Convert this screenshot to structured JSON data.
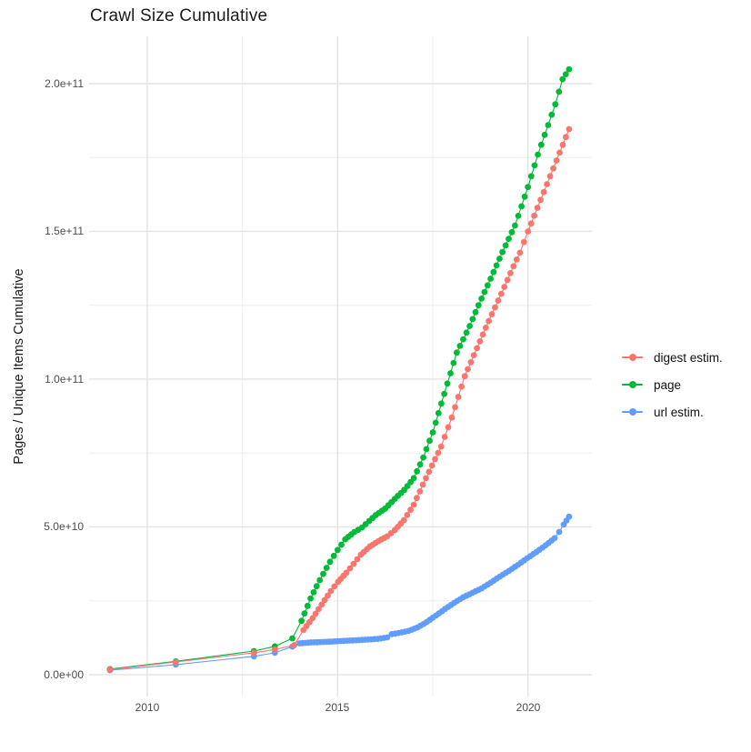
{
  "chart_data": {
    "type": "scatter",
    "title": "Crawl Size Cumulative",
    "xlabel": "",
    "ylabel": "Pages / Unique Items Cumulative",
    "x_tick_labels": [
      "2010",
      "2015",
      "2020"
    ],
    "x_tick_values": [
      2010,
      2015,
      2020
    ],
    "x_minor_values": [
      2012.5,
      2017.5
    ],
    "y_tick_labels": [
      "0.0e+00",
      "5.0e+10",
      "1.0e+11",
      "1.5e+11",
      "2.0e+11"
    ],
    "y_tick_values": [
      0,
      50000000000.0,
      100000000000.0,
      150000000000.0,
      200000000000.0
    ],
    "y_minor_values": [
      25000000000.0,
      75000000000.0,
      125000000000.0,
      175000000000.0
    ],
    "xlim": [
      2008.47,
      2021.68
    ],
    "ylim": [
      -7400000000.0,
      216000000000.0
    ],
    "grid": true,
    "legend_position": "right",
    "point_interval_years": 0.085,
    "series": [
      {
        "id": "digest",
        "name": "digest estim.",
        "color": "#F8766D",
        "dense_from": 2014.0,
        "points": [
          [
            2009.02,
            1700000000.0
          ],
          [
            2010.75,
            4300000000.0
          ],
          [
            2012.8,
            7400000000.0
          ],
          [
            2013.35,
            8500000000.0
          ],
          [
            2013.86,
            10000000000.0
          ],
          [
            2014.1,
            15100000000.0
          ],
          [
            2014.34,
            19100000000.0
          ],
          [
            2014.58,
            23700000000.0
          ],
          [
            2014.82,
            28300000000.0
          ],
          [
            2015.01,
            31400000000.0
          ],
          [
            2015.23,
            34500000000.0
          ],
          [
            2015.42,
            37500000000.0
          ],
          [
            2015.61,
            40600000000.0
          ],
          [
            2015.85,
            43400000000.0
          ],
          [
            2016.07,
            45200000000.0
          ],
          [
            2016.3,
            46800000000.0
          ],
          [
            2016.5,
            48900000000.0
          ],
          [
            2016.74,
            52300000000.0
          ],
          [
            2017.0,
            57500000000.0
          ],
          [
            2017.24,
            64300000000.0
          ],
          [
            2017.48,
            70800000000.0
          ],
          [
            2017.72,
            77200000000.0
          ],
          [
            2018.0,
            87000000000.0
          ],
          [
            2018.34,
            101000000000.0
          ],
          [
            2018.66,
            110500000000.0
          ],
          [
            2018.97,
            119700000000.0
          ],
          [
            2019.3,
            128900000000.0
          ],
          [
            2019.62,
            138200000000.0
          ],
          [
            2019.79,
            142800000000.0
          ],
          [
            2020.0,
            150000000000.0
          ],
          [
            2020.25,
            158000000000.0
          ],
          [
            2020.5,
            166000000000.0
          ],
          [
            2020.75,
            174000000000.0
          ],
          [
            2021.08,
            184600000000.0
          ]
        ]
      },
      {
        "id": "page",
        "name": "page",
        "color": "#00BA38",
        "dense_from": 2014.0,
        "points": [
          [
            2009.02,
            1900000000.0
          ],
          [
            2010.75,
            4500000000.0
          ],
          [
            2012.8,
            8000000000.0
          ],
          [
            2013.35,
            9600000000.0
          ],
          [
            2013.81,
            12300000000.0
          ],
          [
            2014.05,
            18200000000.0
          ],
          [
            2014.29,
            25800000000.0
          ],
          [
            2014.53,
            32000000000.0
          ],
          [
            2014.8,
            38200000000.0
          ],
          [
            2015.0,
            42200000000.0
          ],
          [
            2015.2,
            45800000000.0
          ],
          [
            2015.44,
            48300000000.0
          ],
          [
            2015.64,
            49800000000.0
          ],
          [
            2015.83,
            52000000000.0
          ],
          [
            2016.0,
            54000000000.0
          ],
          [
            2016.25,
            56200000000.0
          ],
          [
            2016.5,
            59500000000.0
          ],
          [
            2016.75,
            62500000000.0
          ],
          [
            2017.0,
            66500000000.0
          ],
          [
            2017.25,
            73500000000.0
          ],
          [
            2017.5,
            82000000000.0
          ],
          [
            2017.8,
            95000000000.0
          ],
          [
            2018.13,
            109000000000.0
          ],
          [
            2018.47,
            118000000000.0
          ],
          [
            2018.7,
            125000000000.0
          ],
          [
            2019.02,
            134000000000.0
          ],
          [
            2019.33,
            143000000000.0
          ],
          [
            2019.66,
            152000000000.0
          ],
          [
            2020.0,
            165000000000.0
          ],
          [
            2020.26,
            176000000000.0
          ],
          [
            2020.53,
            186000000000.0
          ],
          [
            2020.72,
            193000000000.0
          ],
          [
            2020.91,
            201500000000.0
          ],
          [
            2021.08,
            204900000000.0
          ]
        ]
      },
      {
        "id": "url",
        "name": "url estim.",
        "color": "#619CFF",
        "dense_from": 2014.0,
        "points": [
          [
            2009.02,
            1500000000.0
          ],
          [
            2010.75,
            3400000000.0
          ],
          [
            2012.8,
            6200000000.0
          ],
          [
            2013.35,
            7400000000.0
          ],
          [
            2013.81,
            9500000000.0
          ],
          [
            2014.0,
            10600000000.0
          ],
          [
            2014.3,
            10900000000.0
          ],
          [
            2014.7,
            11100000000.0
          ],
          [
            2015.0,
            11300000000.0
          ],
          [
            2015.4,
            11600000000.0
          ],
          [
            2015.8,
            11900000000.0
          ],
          [
            2016.05,
            12100000000.0
          ],
          [
            2016.3,
            12600000000.0
          ],
          [
            2016.42,
            13700000000.0
          ],
          [
            2016.6,
            14100000000.0
          ],
          [
            2016.86,
            14800000000.0
          ],
          [
            2017.1,
            16000000000.0
          ],
          [
            2017.34,
            17800000000.0
          ],
          [
            2017.58,
            20000000000.0
          ],
          [
            2017.82,
            22200000000.0
          ],
          [
            2018.06,
            24300000000.0
          ],
          [
            2018.3,
            26200000000.0
          ],
          [
            2018.54,
            27700000000.0
          ],
          [
            2018.78,
            29200000000.0
          ],
          [
            2019.02,
            31100000000.0
          ],
          [
            2019.26,
            33200000000.0
          ],
          [
            2019.5,
            35100000000.0
          ],
          [
            2019.74,
            37200000000.0
          ],
          [
            2019.98,
            39400000000.0
          ],
          [
            2020.22,
            41500000000.0
          ],
          [
            2020.46,
            43700000000.0
          ],
          [
            2020.7,
            46200000000.0
          ],
          [
            2020.82,
            48300000000.0
          ],
          [
            2020.94,
            50800000000.0
          ],
          [
            2021.08,
            53500000000.0
          ]
        ]
      }
    ]
  },
  "legend": {
    "items": [
      {
        "label": "digest estim.",
        "color": "#F8766D"
      },
      {
        "label": "page",
        "color": "#00BA38"
      },
      {
        "label": "url estim.",
        "color": "#619CFF"
      }
    ]
  },
  "colors": {
    "grid_major": "#E3E3E3",
    "grid_minor": "#EDEDED",
    "tick_label": "#4D4D4D",
    "text": "#1A1A1A",
    "background": "#FFFFFF"
  }
}
